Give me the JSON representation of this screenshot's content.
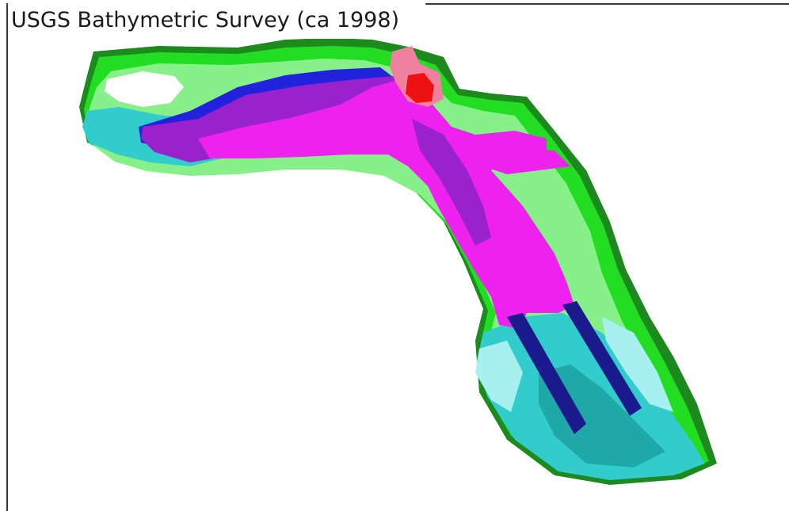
{
  "map": {
    "title": "USGS Bathymetric Survey (ca 1998)",
    "colors": {
      "shoreline_dark_green": "#1c8a1c",
      "shallow_green": "#22dd22",
      "light_green": "#88f088",
      "pale_green": "#ccf8cc",
      "turquoise": "#33cccc",
      "teal_dark": "#1fa8a8",
      "light_cyan": "#a8f0f0",
      "blue": "#2222dd",
      "navy": "#1a1a8c",
      "violet": "#9922cc",
      "magenta": "#ee22ee",
      "pink": "#f080a0",
      "red": "#ee1111"
    }
  }
}
